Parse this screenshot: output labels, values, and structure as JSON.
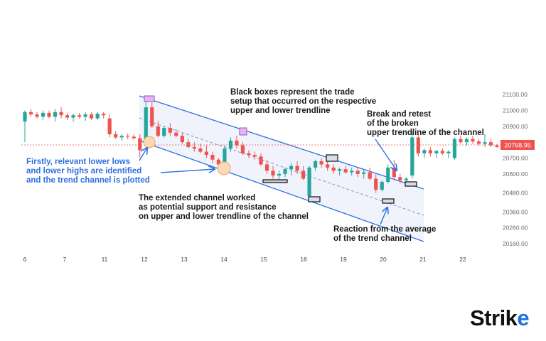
{
  "chart_data": {
    "type": "candlestick",
    "x_ticks": [
      "6",
      "7",
      "11",
      "12",
      "13",
      "14",
      "15",
      "18",
      "19",
      "20",
      "21",
      "22"
    ],
    "y_ticks": [
      "21100.00",
      "21000.00",
      "20900.00",
      "20800.00",
      "20700.00",
      "20600.00",
      "20480.00",
      "20360.00",
      "20260.00",
      "20160.00"
    ],
    "ylim": [
      20120,
      21150
    ],
    "current_price": "20768.95",
    "candles": [
      [
        20930,
        21000,
        20800,
        20990
      ],
      [
        20990,
        21010,
        20960,
        20975
      ],
      [
        20975,
        20990,
        20950,
        20960
      ],
      [
        20960,
        21000,
        20940,
        20985
      ],
      [
        20985,
        21000,
        20950,
        20960
      ],
      [
        20960,
        21010,
        20930,
        20990
      ],
      [
        20990,
        21020,
        20950,
        20970
      ],
      [
        20970,
        20985,
        20940,
        20955
      ],
      [
        20955,
        20980,
        20930,
        20970
      ],
      [
        20970,
        20985,
        20950,
        20960
      ],
      [
        20960,
        20990,
        20935,
        20975
      ],
      [
        20975,
        20990,
        20940,
        20950
      ],
      [
        20950,
        20990,
        20940,
        20980
      ],
      [
        20980,
        20990,
        20950,
        20970
      ],
      [
        20950,
        20975,
        20830,
        20850
      ],
      [
        20850,
        20870,
        20820,
        20830
      ],
      [
        20830,
        20850,
        20810,
        20840
      ],
      [
        20840,
        20855,
        20820,
        20835
      ],
      [
        20835,
        20850,
        20815,
        20825
      ],
      [
        20825,
        20850,
        20700,
        20750
      ],
      [
        20800,
        21080,
        20770,
        21020
      ],
      [
        21020,
        21050,
        20890,
        20900
      ],
      [
        20900,
        20935,
        20830,
        20840
      ],
      [
        20840,
        20900,
        20830,
        20890
      ],
      [
        20890,
        20920,
        20840,
        20860
      ],
      [
        20860,
        20880,
        20830,
        20840
      ],
      [
        20840,
        20860,
        20790,
        20800
      ],
      [
        20800,
        20820,
        20760,
        20770
      ],
      [
        20770,
        20800,
        20740,
        20760
      ],
      [
        20760,
        20790,
        20730,
        20740
      ],
      [
        20740,
        20780,
        20700,
        20720
      ],
      [
        20720,
        20740,
        20670,
        20690
      ],
      [
        20690,
        20700,
        20630,
        20660
      ],
      [
        20640,
        20780,
        20630,
        20760
      ],
      [
        20760,
        20830,
        20740,
        20810
      ],
      [
        20810,
        20840,
        20760,
        20780
      ],
      [
        20780,
        20800,
        20720,
        20730
      ],
      [
        20730,
        20750,
        20700,
        20720
      ],
      [
        20720,
        20740,
        20690,
        20710
      ],
      [
        20710,
        20730,
        20650,
        20660
      ],
      [
        20660,
        20690,
        20600,
        20620
      ],
      [
        20620,
        20650,
        20570,
        20590
      ],
      [
        20590,
        20620,
        20560,
        20600
      ],
      [
        20600,
        20640,
        20580,
        20630
      ],
      [
        20630,
        20670,
        20590,
        20650
      ],
      [
        20650,
        20680,
        20600,
        20620
      ],
      [
        20620,
        20650,
        20560,
        20570
      ],
      [
        20460,
        20650,
        20440,
        20640
      ],
      [
        20640,
        20690,
        20620,
        20680
      ],
      [
        20680,
        20700,
        20640,
        20660
      ],
      [
        20660,
        20680,
        20620,
        20640
      ],
      [
        20640,
        20660,
        20600,
        20620
      ],
      [
        20620,
        20640,
        20590,
        20630
      ],
      [
        20630,
        20650,
        20600,
        20610
      ],
      [
        20610,
        20640,
        20590,
        20620
      ],
      [
        20620,
        20640,
        20580,
        20600
      ],
      [
        20600,
        20630,
        20570,
        20610
      ],
      [
        20610,
        20640,
        20560,
        20570
      ],
      [
        20570,
        20600,
        20480,
        20500
      ],
      [
        20500,
        20560,
        20490,
        20550
      ],
      [
        20550,
        20660,
        20540,
        20640
      ],
      [
        20640,
        20690,
        20560,
        20580
      ],
      [
        20580,
        20600,
        20540,
        20560
      ],
      [
        20560,
        20580,
        20530,
        20570
      ],
      [
        20590,
        20870,
        20570,
        20830
      ],
      [
        20830,
        20850,
        20710,
        20730
      ],
      [
        20730,
        20760,
        20700,
        20750
      ],
      [
        20750,
        20770,
        20710,
        20730
      ],
      [
        20730,
        20750,
        20700,
        20745
      ],
      [
        20745,
        20760,
        20720,
        20730
      ],
      [
        20730,
        20750,
        20700,
        20740
      ],
      [
        20700,
        20830,
        20690,
        20820
      ],
      [
        20820,
        20840,
        20790,
        20800
      ],
      [
        20800,
        20830,
        20780,
        20820
      ],
      [
        20820,
        20840,
        20790,
        20805
      ],
      [
        20805,
        20820,
        20780,
        20790
      ],
      [
        20790,
        20850,
        20770,
        20800
      ],
      [
        20800,
        20820,
        20770,
        20780
      ],
      [
        20780,
        20790,
        20765,
        20770
      ]
    ]
  },
  "annotations": {
    "black_boxes": "Black boxes represent the trade\nsetup that occurred on the respective\nupper and lower trendline",
    "break_retest": "Break and retest\nof the broken\nupper trendline of the channel",
    "firstly": "Firstly, relevant lower lows\nand lower highs are identified\nand the trend channel is plotted",
    "extended_channel": "The extended channel worked\nas potential support and resistance\non upper and lower trendline of the channel",
    "reaction": "Reaction from the average\nof the trend channel"
  },
  "logo": {
    "main": "Strik",
    "accent": "e"
  },
  "colors": {
    "up": "#26a69a",
    "down": "#ef5350",
    "channel": "#2f6fe0",
    "price_line": "#ef5350",
    "highlight_circle": "#f4a15d"
  }
}
